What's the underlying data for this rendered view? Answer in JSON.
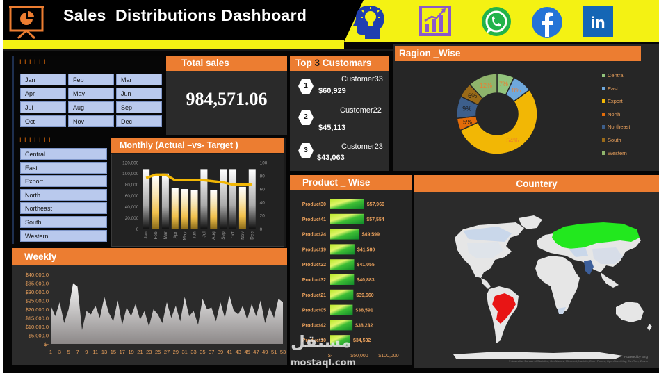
{
  "header": {
    "title": "Sales  Distributions Dashboard",
    "colors": {
      "banner": "#000000",
      "accent_yellow": "#f4f213",
      "orange": "#ec7d31"
    },
    "badges": [
      "lightbulb-head-icon",
      "bar-chart-icon",
      "whatsapp-icon",
      "facebook-icon",
      "linkedin-icon"
    ],
    "linkedin_text": "in"
  },
  "month_slicer": {
    "header": "I I I I I I",
    "months": [
      "Jan",
      "Feb",
      "Mar",
      "Apr",
      "May",
      "Jun",
      "Jul",
      "Aug",
      "Sep",
      "Oct",
      "Nov",
      "Dec"
    ]
  },
  "region_slicer": {
    "header": "I I I I I I I",
    "regions": [
      "Central",
      "East",
      "Export",
      "North",
      "Northeast",
      "South",
      "Western"
    ]
  },
  "total_sales": {
    "title": "Total sales",
    "value": "984,571.06"
  },
  "top_customers": {
    "title_left": "Top ",
    "title_num": "3",
    "title_right": " Customars",
    "items": [
      {
        "rank": "1",
        "name": "Customer33",
        "value": "$60,929"
      },
      {
        "rank": "2",
        "name": "Customer22",
        "value": "$45,113"
      },
      {
        "rank": "3",
        "name": "Customer23",
        "value": "$43,063"
      }
    ]
  },
  "region_wise": {
    "title": "Ragion _Wise"
  },
  "monthly": {
    "title": "Monthly (Actual –vs- Target )"
  },
  "weekly": {
    "title": "Weekly"
  },
  "product_wise": {
    "title": "Product _ Wise"
  },
  "country": {
    "title": "Countery",
    "attribution": "Powered by Bing",
    "copyright": "© Australian Bureau of Statistics, GeoNames, Microsoft, Navinfo, Open Places, OpenStreetMap, TomTom, Zenrin"
  },
  "watermark": {
    "logo": "مستقل",
    "text": "mostaql.com"
  },
  "chart_data": [
    {
      "id": "region",
      "type": "pie",
      "title": "Ragion _Wise",
      "legend": "right",
      "labels": [
        "Central",
        "East",
        "Export",
        "North",
        "Northeast",
        "South",
        "Western"
      ],
      "values": [
        7,
        8,
        54,
        5,
        9,
        6,
        12
      ],
      "value_labels": [
        "7%",
        "8%",
        "54%",
        "5%",
        "9%",
        "6%",
        "12%"
      ],
      "colors": [
        "#92c47d",
        "#6fa8dc",
        "#f2b705",
        "#e36c09",
        "#3d5f8c",
        "#9a6a18",
        "#8fb46c"
      ],
      "label_colors": [
        "#ec7d31",
        "#ec7d31",
        "#ec7d31",
        "#1a1a1a",
        "#1a1a1a",
        "#1a1a1a",
        "#ec7d31"
      ]
    },
    {
      "id": "monthly",
      "type": "bar",
      "title": "Monthly (Actual –vs- Target )",
      "categories": [
        "Jan",
        "Feb",
        "Mar",
        "Apr",
        "May",
        "Jun",
        "Jul",
        "Aug",
        "Sep",
        "Oct",
        "Nov",
        "Dec"
      ],
      "series": [
        {
          "values": [
            108000,
            96000,
            100000,
            74000,
            72000,
            70000,
            108000,
            70000,
            108000,
            108000,
            76000,
            108000
          ],
          "kind": "bar",
          "axis": "left"
        },
        {
          "values": [
            92000,
            98000,
            98000,
            88000,
            88000,
            88000,
            88000,
            86000,
            84000,
            80000,
            80000,
            80000
          ],
          "kind": "line",
          "axis": "left",
          "color": "#f2b705"
        }
      ],
      "ylim": [
        0,
        120000
      ],
      "y_ticks": [
        "120,000",
        "100,000",
        "80,000",
        "60,000",
        "40,000",
        "20,000",
        "0"
      ],
      "y2_ticks": [
        "100",
        "80",
        "60",
        "40",
        "20",
        "0"
      ],
      "grid": false
    },
    {
      "id": "weekly",
      "type": "area",
      "title": "Weekly",
      "x_ticks": [
        "1",
        "3",
        "5",
        "7",
        "9",
        "11",
        "13",
        "15",
        "17",
        "19",
        "21",
        "23",
        "25",
        "27",
        "29",
        "31",
        "33",
        "35",
        "37",
        "39",
        "41",
        "43",
        "45",
        "47",
        "49",
        "51",
        "53"
      ],
      "y_ticks": [
        "$40,000.0",
        "$35,000.0",
        "$30,000.0",
        "$25,000.0",
        "$20,000.0",
        "$15,000.0",
        "$10,000.0",
        "$5,000.0",
        "$-"
      ],
      "ylim": [
        0,
        40000
      ],
      "x": [
        1,
        2,
        3,
        4,
        5,
        6,
        7,
        8,
        9,
        10,
        11,
        12,
        13,
        14,
        15,
        16,
        17,
        18,
        19,
        20,
        21,
        22,
        23,
        24,
        25,
        26,
        27,
        28,
        29,
        30,
        31,
        32,
        33,
        34,
        35,
        36,
        37,
        38,
        39,
        40,
        41,
        42,
        43,
        44,
        45,
        46,
        47,
        48,
        49,
        50,
        51,
        52,
        53
      ],
      "values": [
        22000,
        16000,
        24000,
        12000,
        20000,
        35000,
        33000,
        8000,
        19000,
        17000,
        22000,
        15000,
        27000,
        18000,
        13000,
        25000,
        11000,
        21000,
        16000,
        23000,
        14000,
        19000,
        10000,
        20000,
        17000,
        12000,
        24000,
        15000,
        22000,
        13000,
        27000,
        16000,
        19000,
        11000,
        26000,
        20000,
        21000,
        13000,
        24000,
        15000,
        28000,
        19000,
        17000,
        22000,
        14000,
        23000,
        16000,
        25000,
        12000,
        21000,
        15000,
        26000,
        24000
      ],
      "grid": false
    },
    {
      "id": "product",
      "type": "bar",
      "title": "Product _ Wise",
      "orientation": "horizontal",
      "categories": [
        "Product30",
        "Product41",
        "Product24",
        "Product19",
        "Product22",
        "Product32",
        "Product21",
        "Product05",
        "Product42",
        "Product10"
      ],
      "values": [
        57969,
        57554,
        49599,
        41580,
        41055,
        40883,
        39660,
        38591,
        38232,
        34532
      ],
      "value_labels": [
        "$57,969",
        "$57,554",
        "$49,599",
        "$41,580",
        "$41,055",
        "$40,883",
        "$39,660",
        "$38,591",
        "$38,232",
        "$34,532"
      ],
      "x_ticks": [
        "$-",
        "$50,000",
        "$100,000"
      ],
      "xlim": [
        0,
        100000
      ]
    }
  ]
}
